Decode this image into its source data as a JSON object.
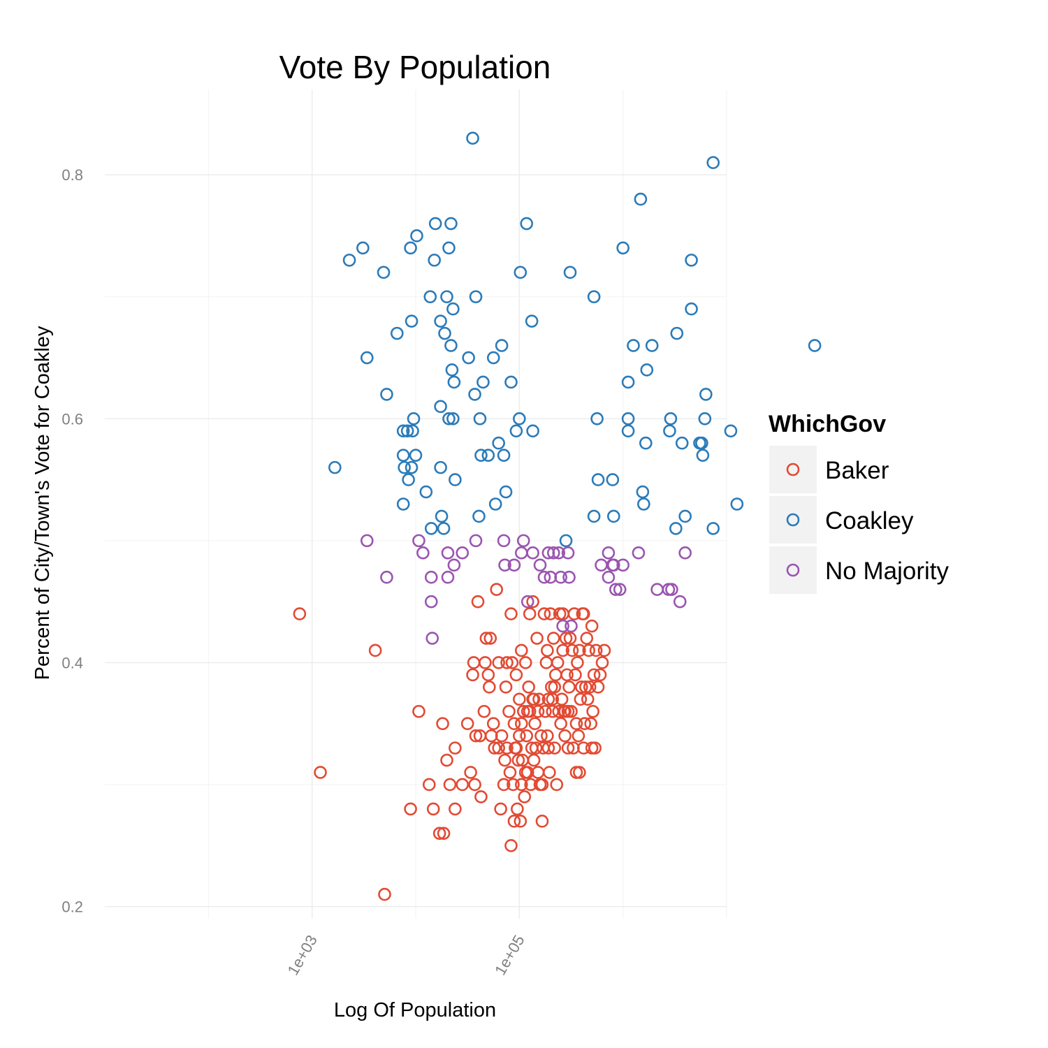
{
  "chart_data": {
    "type": "scatter",
    "title": "Vote By Population",
    "xlabel": "Log Of Population",
    "ylabel": "Percent of City/Town's Vote for Coakley",
    "x_scale": "log10",
    "xlim": [
      10,
      10000000
    ],
    "ylim": [
      0.19,
      0.87
    ],
    "x_ticks": [
      {
        "value": 1000,
        "label": "1e+03"
      },
      {
        "value": 100000,
        "label": "1e+05"
      }
    ],
    "y_ticks": [
      {
        "value": 0.2,
        "label": "0.2"
      },
      {
        "value": 0.4,
        "label": "0.4"
      },
      {
        "value": 0.6,
        "label": "0.6"
      },
      {
        "value": 0.8,
        "label": "0.8"
      }
    ],
    "grid": true,
    "marker": "open-circle",
    "legend": {
      "title": "WhichGov",
      "position": "right"
    },
    "series": [
      {
        "name": "Baker",
        "color": "#e24a33",
        "points": [
          [
            2.88,
            0.44
          ],
          [
            3.08,
            0.31
          ],
          [
            3.61,
            0.41
          ],
          [
            3.7,
            0.21
          ],
          [
            4.03,
            0.36
          ],
          [
            3.95,
            0.28
          ],
          [
            4.13,
            0.3
          ],
          [
            4.17,
            0.28
          ],
          [
            4.23,
            0.26
          ],
          [
            4.27,
            0.26
          ],
          [
            4.26,
            0.35
          ],
          [
            4.3,
            0.32
          ],
          [
            4.33,
            0.3
          ],
          [
            4.38,
            0.28
          ],
          [
            4.38,
            0.33
          ],
          [
            4.45,
            0.3
          ],
          [
            4.5,
            0.35
          ],
          [
            4.53,
            0.31
          ],
          [
            4.55,
            0.39
          ],
          [
            4.56,
            0.4
          ],
          [
            4.58,
            0.34
          ],
          [
            4.62,
            0.34
          ],
          [
            4.63,
            0.29
          ],
          [
            4.6,
            0.45
          ],
          [
            4.66,
            0.36
          ],
          [
            4.68,
            0.42
          ],
          [
            4.7,
            0.39
          ],
          [
            4.71,
            0.38
          ],
          [
            4.72,
            0.42
          ],
          [
            4.75,
            0.35
          ],
          [
            4.76,
            0.33
          ],
          [
            4.78,
            0.46
          ],
          [
            4.8,
            0.4
          ],
          [
            4.8,
            0.33
          ],
          [
            4.82,
            0.28
          ],
          [
            4.83,
            0.34
          ],
          [
            4.85,
            0.3
          ],
          [
            4.87,
            0.38
          ],
          [
            4.88,
            0.4
          ],
          [
            4.88,
            0.33
          ],
          [
            4.9,
            0.36
          ],
          [
            4.91,
            0.31
          ],
          [
            4.92,
            0.44
          ],
          [
            4.93,
            0.4
          ],
          [
            4.94,
            0.3
          ],
          [
            4.95,
            0.35
          ],
          [
            4.96,
            0.33
          ],
          [
            4.97,
            0.39
          ],
          [
            4.98,
            0.28
          ],
          [
            4.99,
            0.32
          ],
          [
            5.0,
            0.37
          ],
          [
            5.0,
            0.34
          ],
          [
            5.01,
            0.27
          ],
          [
            5.02,
            0.41
          ],
          [
            5.03,
            0.32
          ],
          [
            5.04,
            0.36
          ],
          [
            5.05,
            0.29
          ],
          [
            5.06,
            0.4
          ],
          [
            5.07,
            0.34
          ],
          [
            5.08,
            0.31
          ],
          [
            5.09,
            0.38
          ],
          [
            5.1,
            0.36
          ],
          [
            5.11,
            0.3
          ],
          [
            5.12,
            0.33
          ],
          [
            5.13,
            0.45
          ],
          [
            5.14,
            0.37
          ],
          [
            5.15,
            0.35
          ],
          [
            5.16,
            0.33
          ],
          [
            5.17,
            0.42
          ],
          [
            5.18,
            0.31
          ],
          [
            5.19,
            0.37
          ],
          [
            5.2,
            0.3
          ],
          [
            5.21,
            0.34
          ],
          [
            5.22,
            0.27
          ],
          [
            5.23,
            0.33
          ],
          [
            5.24,
            0.44
          ],
          [
            5.25,
            0.36
          ],
          [
            5.26,
            0.4
          ],
          [
            5.27,
            0.34
          ],
          [
            5.28,
            0.33
          ],
          [
            5.29,
            0.31
          ],
          [
            5.3,
            0.44
          ],
          [
            5.31,
            0.38
          ],
          [
            5.32,
            0.36
          ],
          [
            5.33,
            0.42
          ],
          [
            5.34,
            0.33
          ],
          [
            5.35,
            0.39
          ],
          [
            5.36,
            0.3
          ],
          [
            5.37,
            0.4
          ],
          [
            5.38,
            0.36
          ],
          [
            5.39,
            0.44
          ],
          [
            5.4,
            0.35
          ],
          [
            5.41,
            0.37
          ],
          [
            5.42,
            0.41
          ],
          [
            5.43,
            0.36
          ],
          [
            5.44,
            0.34
          ],
          [
            5.45,
            0.42
          ],
          [
            5.46,
            0.39
          ],
          [
            5.47,
            0.36
          ],
          [
            5.48,
            0.38
          ],
          [
            5.49,
            0.42
          ],
          [
            5.5,
            0.36
          ],
          [
            5.51,
            0.41
          ],
          [
            5.52,
            0.33
          ],
          [
            5.53,
            0.44
          ],
          [
            5.54,
            0.39
          ],
          [
            5.55,
            0.35
          ],
          [
            5.56,
            0.4
          ],
          [
            5.57,
            0.34
          ],
          [
            5.58,
            0.31
          ],
          [
            5.59,
            0.37
          ],
          [
            5.6,
            0.38
          ],
          [
            5.61,
            0.44
          ],
          [
            5.62,
            0.33
          ],
          [
            5.63,
            0.35
          ],
          [
            5.64,
            0.38
          ],
          [
            5.65,
            0.42
          ],
          [
            5.66,
            0.37
          ],
          [
            5.67,
            0.41
          ],
          [
            5.68,
            0.38
          ],
          [
            5.7,
            0.43
          ],
          [
            5.71,
            0.36
          ],
          [
            5.72,
            0.39
          ],
          [
            5.74,
            0.41
          ],
          [
            5.76,
            0.38
          ],
          [
            5.78,
            0.39
          ],
          [
            5.8,
            0.4
          ],
          [
            5.82,
            0.41
          ],
          [
            5.73,
            0.33
          ],
          [
            5.69,
            0.35
          ],
          [
            5.42,
            0.44
          ],
          [
            5.28,
            0.37
          ],
          [
            5.18,
            0.36
          ],
          [
            5.06,
            0.31
          ],
          [
            4.95,
            0.27
          ],
          [
            4.97,
            0.33
          ],
          [
            5.02,
            0.35
          ],
          [
            5.08,
            0.36
          ],
          [
            5.14,
            0.32
          ],
          [
            5.22,
            0.3
          ],
          [
            5.32,
            0.37
          ],
          [
            5.47,
            0.33
          ],
          [
            5.58,
            0.41
          ],
          [
            5.62,
            0.44
          ],
          [
            5.7,
            0.33
          ],
          [
            5.55,
            0.31
          ],
          [
            5.44,
            0.36
          ],
          [
            5.34,
            0.38
          ],
          [
            5.27,
            0.41
          ],
          [
            5.13,
            0.37
          ],
          [
            5.02,
            0.3
          ],
          [
            4.92,
            0.25
          ],
          [
            4.86,
            0.32
          ],
          [
            4.73,
            0.34
          ],
          [
            4.67,
            0.4
          ],
          [
            4.57,
            0.3
          ],
          [
            5.1,
            0.44
          ]
        ]
      },
      {
        "name": "Coakley",
        "color": "#2b7bb9",
        "points": [
          [
            3.22,
            0.56
          ],
          [
            3.36,
            0.73
          ],
          [
            3.49,
            0.74
          ],
          [
            3.53,
            0.65
          ],
          [
            3.69,
            0.72
          ],
          [
            3.72,
            0.62
          ],
          [
            3.82,
            0.67
          ],
          [
            3.88,
            0.59
          ],
          [
            3.88,
            0.57
          ],
          [
            3.88,
            0.53
          ],
          [
            3.89,
            0.56
          ],
          [
            3.92,
            0.59
          ],
          [
            3.93,
            0.55
          ],
          [
            3.95,
            0.74
          ],
          [
            3.96,
            0.56
          ],
          [
            3.96,
            0.68
          ],
          [
            3.97,
            0.59
          ],
          [
            3.98,
            0.6
          ],
          [
            4.0,
            0.57
          ],
          [
            4.01,
            0.75
          ],
          [
            4.1,
            0.54
          ],
          [
            4.14,
            0.7
          ],
          [
            4.15,
            0.51
          ],
          [
            4.18,
            0.73
          ],
          [
            4.19,
            0.76
          ],
          [
            4.24,
            0.68
          ],
          [
            4.24,
            0.61
          ],
          [
            4.24,
            0.56
          ],
          [
            4.25,
            0.52
          ],
          [
            4.27,
            0.51
          ],
          [
            4.28,
            0.67
          ],
          [
            4.3,
            0.7
          ],
          [
            4.32,
            0.6
          ],
          [
            4.32,
            0.74
          ],
          [
            4.34,
            0.66
          ],
          [
            4.34,
            0.76
          ],
          [
            4.35,
            0.64
          ],
          [
            4.36,
            0.69
          ],
          [
            4.36,
            0.6
          ],
          [
            4.37,
            0.63
          ],
          [
            4.38,
            0.55
          ],
          [
            4.51,
            0.65
          ],
          [
            4.57,
            0.62
          ],
          [
            4.58,
            0.7
          ],
          [
            4.61,
            0.52
          ],
          [
            4.62,
            0.6
          ],
          [
            4.63,
            0.57
          ],
          [
            4.65,
            0.63
          ],
          [
            4.7,
            0.57
          ],
          [
            4.75,
            0.65
          ],
          [
            4.77,
            0.53
          ],
          [
            4.8,
            0.58
          ],
          [
            4.83,
            0.66
          ],
          [
            4.85,
            0.57
          ],
          [
            4.87,
            0.54
          ],
          [
            4.92,
            0.63
          ],
          [
            4.97,
            0.59
          ],
          [
            5.0,
            0.6
          ],
          [
            5.01,
            0.72
          ],
          [
            5.07,
            0.76
          ],
          [
            5.12,
            0.68
          ],
          [
            5.13,
            0.59
          ],
          [
            5.45,
            0.5
          ],
          [
            4.55,
            0.83
          ],
          [
            5.72,
            0.7
          ],
          [
            5.49,
            0.72
          ],
          [
            5.72,
            0.52
          ],
          [
            5.75,
            0.6
          ],
          [
            5.76,
            0.55
          ],
          [
            5.91,
            0.52
          ],
          [
            5.9,
            0.55
          ],
          [
            6.0,
            0.74
          ],
          [
            6.05,
            0.63
          ],
          [
            6.05,
            0.59
          ],
          [
            6.05,
            0.6
          ],
          [
            6.1,
            0.66
          ],
          [
            6.17,
            0.78
          ],
          [
            6.19,
            0.54
          ],
          [
            6.2,
            0.53
          ],
          [
            6.22,
            0.58
          ],
          [
            6.23,
            0.64
          ],
          [
            6.28,
            0.66
          ],
          [
            6.45,
            0.59
          ],
          [
            6.46,
            0.6
          ],
          [
            6.52,
            0.67
          ],
          [
            6.57,
            0.58
          ],
          [
            6.6,
            0.52
          ],
          [
            6.51,
            0.51
          ],
          [
            6.66,
            0.69
          ],
          [
            6.66,
            0.73
          ],
          [
            6.74,
            0.58
          ],
          [
            6.76,
            0.58
          ],
          [
            6.77,
            0.57
          ],
          [
            6.79,
            0.6
          ],
          [
            6.8,
            0.62
          ],
          [
            7.04,
            0.59
          ],
          [
            7.1,
            0.53
          ],
          [
            6.87,
            0.51
          ],
          [
            6.87,
            0.81
          ],
          [
            7.85,
            0.66
          ]
        ]
      },
      {
        "name": "No Majority",
        "color": "#9a55b0",
        "points": [
          [
            3.53,
            0.5
          ],
          [
            3.72,
            0.47
          ],
          [
            4.03,
            0.5
          ],
          [
            4.07,
            0.49
          ],
          [
            4.15,
            0.47
          ],
          [
            4.15,
            0.45
          ],
          [
            4.16,
            0.42
          ],
          [
            4.31,
            0.49
          ],
          [
            4.31,
            0.47
          ],
          [
            4.37,
            0.48
          ],
          [
            4.45,
            0.49
          ],
          [
            4.58,
            0.5
          ],
          [
            4.85,
            0.5
          ],
          [
            4.86,
            0.48
          ],
          [
            4.95,
            0.48
          ],
          [
            5.02,
            0.49
          ],
          [
            5.04,
            0.5
          ],
          [
            5.08,
            0.45
          ],
          [
            5.13,
            0.49
          ],
          [
            5.2,
            0.48
          ],
          [
            5.24,
            0.47
          ],
          [
            5.28,
            0.49
          ],
          [
            5.3,
            0.47
          ],
          [
            5.33,
            0.49
          ],
          [
            5.38,
            0.49
          ],
          [
            5.4,
            0.47
          ],
          [
            5.42,
            0.43
          ],
          [
            5.47,
            0.49
          ],
          [
            5.48,
            0.47
          ],
          [
            5.79,
            0.48
          ],
          [
            5.86,
            0.49
          ],
          [
            5.86,
            0.47
          ],
          [
            5.9,
            0.48
          ],
          [
            5.91,
            0.48
          ],
          [
            5.93,
            0.46
          ],
          [
            5.97,
            0.46
          ],
          [
            6.0,
            0.48
          ],
          [
            6.15,
            0.49
          ],
          [
            6.33,
            0.46
          ],
          [
            6.44,
            0.46
          ],
          [
            6.47,
            0.46
          ],
          [
            6.6,
            0.49
          ],
          [
            6.55,
            0.45
          ],
          [
            5.5,
            0.43
          ]
        ]
      }
    ]
  }
}
